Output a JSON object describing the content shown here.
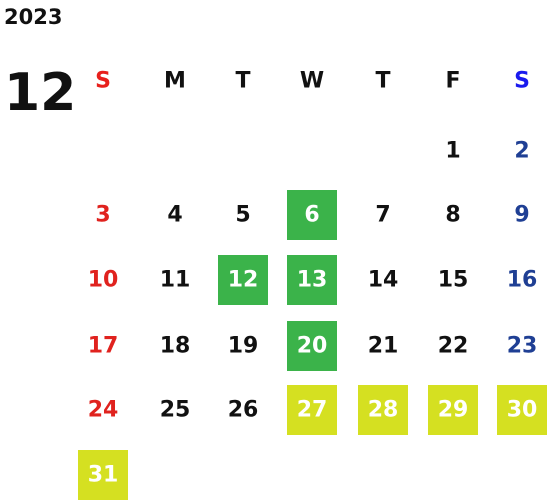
{
  "year": "2023",
  "month": "12",
  "weekdays": [
    "S",
    "M",
    "T",
    "W",
    "T",
    "F",
    "S"
  ],
  "header_colors": [
    "#e8201c",
    "#111111",
    "#111111",
    "#111111",
    "#111111",
    "#111111",
    "#1a1aee"
  ],
  "day_colors": [
    "#e0221e",
    "#111111",
    "#111111",
    "#111111",
    "#111111",
    "#111111",
    "#1f3f94"
  ],
  "weeks": [
    [
      null,
      null,
      null,
      null,
      null,
      1,
      2
    ],
    [
      3,
      4,
      5,
      {
        "day": 6,
        "fill": "#3bb34a"
      },
      7,
      8,
      9
    ],
    [
      10,
      11,
      {
        "day": 12,
        "fill": "#3bb34a"
      },
      {
        "day": 13,
        "fill": "#3bb34a"
      },
      14,
      15,
      16
    ],
    [
      17,
      18,
      19,
      {
        "day": 20,
        "fill": "#3bb34a"
      },
      21,
      22,
      23
    ],
    [
      24,
      25,
      26,
      {
        "day": 27,
        "fill": "#d5e021"
      },
      {
        "day": 28,
        "fill": "#d5e021"
      },
      {
        "day": 29,
        "fill": "#d5e021"
      },
      {
        "day": 30,
        "fill": "#d5e021"
      }
    ],
    [
      {
        "day": 31,
        "fill": "#d5e021"
      },
      null,
      null,
      null,
      null,
      null,
      null
    ]
  ]
}
